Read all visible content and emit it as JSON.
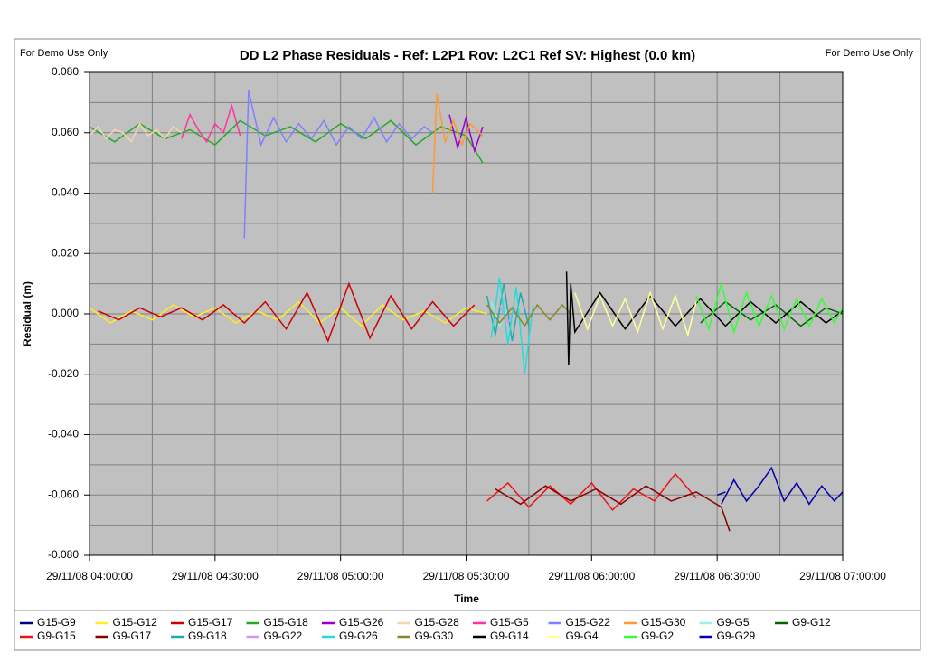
{
  "chart_data": {
    "type": "line",
    "title": "DD L2 Phase Residuals - Ref: L2P1 Rov: L2C1 Ref SV: Highest (0.0 km)",
    "notes": [
      "For Demo Use Only",
      "For Demo Use Only"
    ],
    "x_label": "Time",
    "y_label": "Residual (m)",
    "xlim": [
      "29/11/08 04:00:00",
      "29/11/08 07:00:00"
    ],
    "xticks": [
      "29/11/08 04:00:00",
      "29/11/08 04:30:00",
      "29/11/08 05:00:00",
      "29/11/08 05:30:00",
      "29/11/08 06:00:00",
      "29/11/08 06:30:00",
      "29/11/08 07:00:00"
    ],
    "minor_xticks": [
      "29/11/08 04:15:00",
      "29/11/08 04:45:00",
      "29/11/08 05:15:00",
      "29/11/08 05:45:00",
      "29/11/08 06:15:00",
      "29/11/08 06:45:00"
    ],
    "ylim": [
      -0.08,
      0.08
    ],
    "yticks": [
      {
        "value": 0.08,
        "label": "0.080"
      },
      {
        "value": 0.06,
        "label": "0.060"
      },
      {
        "value": 0.04,
        "label": "0.040"
      },
      {
        "value": 0.02,
        "label": "0.020"
      },
      {
        "value": 0,
        "label": "0.000"
      },
      {
        "value": -0.02,
        "label": "-0.020"
      },
      {
        "value": -0.04,
        "label": "-0.040"
      },
      {
        "value": -0.06,
        "label": "-0.060"
      },
      {
        "value": -0.08,
        "label": "-0.080"
      }
    ],
    "minor_yticks": [
      0.07,
      0.05,
      0.03,
      0.01,
      -0.01,
      -0.03,
      -0.05,
      -0.07
    ],
    "grid": true,
    "series": [
      {
        "name": "G15-G9",
        "color": "#000080",
        "x": [
          "29/11/08 06:30:00",
          "29/11/08 06:32:00"
        ],
        "values": [
          -0.06,
          -0.059
        ]
      },
      {
        "name": "G15-G12",
        "color": "#ffee22",
        "x": [
          "29/11/08 04:00:00",
          "29/11/08 04:05:00",
          "29/11/08 04:10:00",
          "29/11/08 04:15:00",
          "29/11/08 04:20:00",
          "29/11/08 04:25:00",
          "29/11/08 04:30:00",
          "29/11/08 04:35:00",
          "29/11/08 04:40:00",
          "29/11/08 04:45:00",
          "29/11/08 04:50:00",
          "29/11/08 04:55:00",
          "29/11/08 05:00:00",
          "29/11/08 05:05:00",
          "29/11/08 05:10:00",
          "29/11/08 05:15:00",
          "29/11/08 05:20:00",
          "29/11/08 05:25:00",
          "29/11/08 05:30:00",
          "29/11/08 05:35:00"
        ],
        "values": [
          0.002,
          -0.003,
          0.001,
          -0.002,
          0.003,
          -0.001,
          0.002,
          -0.003,
          0.001,
          -0.002,
          0.004,
          -0.003,
          0.002,
          -0.004,
          0.003,
          -0.002,
          0.001,
          -0.003,
          0.002,
          0.0
        ]
      },
      {
        "name": "G15-G17",
        "color": "#cc0000",
        "x": [
          "29/11/08 04:02:00",
          "29/11/08 04:07:00",
          "29/11/08 04:12:00",
          "29/11/08 04:17:00",
          "29/11/08 04:22:00",
          "29/11/08 04:27:00",
          "29/11/08 04:32:00",
          "29/11/08 04:37:00",
          "29/11/08 04:42:00",
          "29/11/08 04:47:00",
          "29/11/08 04:52:00",
          "29/11/08 04:57:00",
          "29/11/08 05:02:00",
          "29/11/08 05:07:00",
          "29/11/08 05:12:00",
          "29/11/08 05:17:00",
          "29/11/08 05:22:00",
          "29/11/08 05:27:00",
          "29/11/08 05:32:00"
        ],
        "values": [
          0.001,
          -0.002,
          0.002,
          -0.001,
          0.002,
          -0.002,
          0.003,
          -0.003,
          0.004,
          -0.005,
          0.007,
          -0.009,
          0.01,
          -0.008,
          0.006,
          -0.005,
          0.004,
          -0.004,
          0.003
        ]
      },
      {
        "name": "G15-G18",
        "color": "#22aa22",
        "x": [
          "29/11/08 04:00:00",
          "29/11/08 04:06:00",
          "29/11/08 04:12:00",
          "29/11/08 04:18:00",
          "29/11/08 04:24:00",
          "29/11/08 04:30:00",
          "29/11/08 04:36:00",
          "29/11/08 04:42:00",
          "29/11/08 04:48:00",
          "29/11/08 04:54:00",
          "29/11/08 05:00:00",
          "29/11/08 05:06:00",
          "29/11/08 05:12:00",
          "29/11/08 05:18:00",
          "29/11/08 05:24:00",
          "29/11/08 05:30:00",
          "29/11/08 05:34:00"
        ],
        "values": [
          0.062,
          0.057,
          0.063,
          0.058,
          0.061,
          0.056,
          0.064,
          0.059,
          0.062,
          0.057,
          0.063,
          0.058,
          0.064,
          0.056,
          0.062,
          0.059,
          0.05
        ]
      },
      {
        "name": "G15-G26",
        "color": "#9900cc",
        "x": [
          "29/11/08 05:26:00",
          "29/11/08 05:28:00",
          "29/11/08 05:30:00",
          "29/11/08 05:32:00",
          "29/11/08 05:34:00"
        ],
        "values": [
          0.066,
          0.055,
          0.065,
          0.054,
          0.062
        ]
      },
      {
        "name": "G15-G28",
        "color": "#f5d5b0",
        "x": [
          "29/11/08 04:00:00",
          "29/11/08 04:02:00",
          "29/11/08 04:04:00",
          "29/11/08 04:06:00",
          "29/11/08 04:08:00",
          "29/11/08 04:10:00",
          "29/11/08 04:12:00",
          "29/11/08 04:14:00",
          "29/11/08 04:16:00",
          "29/11/08 04:18:00",
          "29/11/08 04:20:00",
          "29/11/08 04:22:00"
        ],
        "values": [
          0.059,
          0.062,
          0.058,
          0.061,
          0.06,
          0.057,
          0.063,
          0.059,
          0.061,
          0.058,
          0.062,
          0.06
        ]
      },
      {
        "name": "G15-G5",
        "color": "#ff3399",
        "x": [
          "29/11/08 04:22:00",
          "29/11/08 04:24:00",
          "29/11/08 04:26:00",
          "29/11/08 04:28:00",
          "29/11/08 04:30:00",
          "29/11/08 04:32:00",
          "29/11/08 04:34:00",
          "29/11/08 04:36:00"
        ],
        "values": [
          0.058,
          0.066,
          0.061,
          0.057,
          0.063,
          0.06,
          0.069,
          0.059
        ]
      },
      {
        "name": "G15-G22",
        "color": "#8080ff",
        "x": [
          "29/11/08 04:37:00",
          "29/11/08 04:38:00",
          "29/11/08 04:41:00",
          "29/11/08 04:44:00",
          "29/11/08 04:47:00",
          "29/11/08 04:50:00",
          "29/11/08 04:53:00",
          "29/11/08 04:56:00",
          "29/11/08 04:59:00",
          "29/11/08 05:02:00",
          "29/11/08 05:05:00",
          "29/11/08 05:08:00",
          "29/11/08 05:11:00",
          "29/11/08 05:14:00",
          "29/11/08 05:17:00",
          "29/11/08 05:20:00",
          "29/11/08 05:22:00"
        ],
        "values": [
          0.025,
          0.074,
          0.056,
          0.065,
          0.057,
          0.063,
          0.058,
          0.064,
          0.056,
          0.062,
          0.058,
          0.065,
          0.057,
          0.063,
          0.058,
          0.062,
          0.06
        ]
      },
      {
        "name": "G15-G30",
        "color": "#ff9933",
        "x": [
          "29/11/08 05:22:00",
          "29/11/08 05:23:00",
          "29/11/08 05:25:00",
          "29/11/08 05:27:00",
          "29/11/08 05:29:00",
          "29/11/08 05:31:00",
          "29/11/08 05:34:00"
        ],
        "values": [
          0.04,
          0.073,
          0.057,
          0.064,
          0.056,
          0.063,
          0.059
        ]
      },
      {
        "name": "G9-G5",
        "color": "#99eeee",
        "x": [
          "29/11/08 05:36:00",
          "29/11/08 05:38:00",
          "29/11/08 05:40:00"
        ],
        "values": [
          0.004,
          -0.004,
          0.002
        ]
      },
      {
        "name": "G9-G12",
        "color": "#006600",
        "x": [
          "29/11/08 06:26:00",
          "29/11/08 06:32:00",
          "29/11/08 06:38:00",
          "29/11/08 06:44:00",
          "29/11/08 06:50:00",
          "29/11/08 06:56:00",
          "29/11/08 07:00:00"
        ],
        "values": [
          -0.003,
          0.004,
          -0.002,
          0.003,
          -0.004,
          0.002,
          0.0
        ]
      },
      {
        "name": "G9-G15",
        "color": "#ee1111",
        "x": [
          "29/11/08 05:35:00",
          "29/11/08 05:40:00",
          "29/11/08 05:45:00",
          "29/11/08 05:50:00",
          "29/11/08 05:55:00",
          "29/11/08 06:00:00",
          "29/11/08 06:05:00",
          "29/11/08 06:10:00",
          "29/11/08 06:15:00",
          "29/11/08 06:20:00",
          "29/11/08 06:25:00"
        ],
        "values": [
          -0.062,
          -0.056,
          -0.064,
          -0.057,
          -0.063,
          -0.056,
          -0.065,
          -0.058,
          -0.062,
          -0.053,
          -0.061
        ]
      },
      {
        "name": "G9-G17",
        "color": "#880000",
        "x": [
          "29/11/08 05:37:00",
          "29/11/08 05:43:00",
          "29/11/08 05:49:00",
          "29/11/08 05:55:00",
          "29/11/08 06:01:00",
          "29/11/08 06:07:00",
          "29/11/08 06:13:00",
          "29/11/08 06:19:00",
          "29/11/08 06:25:00",
          "29/11/08 06:31:00",
          "29/11/08 06:33:00"
        ],
        "values": [
          -0.058,
          -0.063,
          -0.057,
          -0.062,
          -0.058,
          -0.063,
          -0.057,
          -0.062,
          -0.059,
          -0.064,
          -0.072
        ]
      },
      {
        "name": "G9-G18",
        "color": "#22aaaa",
        "x": [
          "29/11/08 05:35:00",
          "29/11/08 05:37:00",
          "29/11/08 05:39:00",
          "29/11/08 05:41:00",
          "29/11/08 05:43:00",
          "29/11/08 05:45:00"
        ],
        "values": [
          0.006,
          -0.007,
          0.01,
          -0.009,
          0.007,
          -0.004
        ]
      },
      {
        "name": "G9-G22",
        "color": "#cc99ee",
        "x": [
          "29/11/08 05:38:00",
          "29/11/08 05:40:00",
          "29/11/08 05:42:00"
        ],
        "values": [
          0.003,
          -0.003,
          0.002
        ]
      },
      {
        "name": "G9-G26",
        "color": "#22dddd",
        "x": [
          "29/11/08 05:36:00",
          "29/11/08 05:38:00",
          "29/11/08 05:40:00",
          "29/11/08 05:42:00",
          "29/11/08 05:44:00",
          "29/11/08 05:46:00"
        ],
        "values": [
          -0.008,
          0.012,
          -0.01,
          0.009,
          -0.02,
          0.003
        ]
      },
      {
        "name": "G9-G30",
        "color": "#888822",
        "x": [
          "29/11/08 05:35:00",
          "29/11/08 05:38:00",
          "29/11/08 05:41:00",
          "29/11/08 05:44:00",
          "29/11/08 05:47:00",
          "29/11/08 05:50:00",
          "29/11/08 05:53:00",
          "29/11/08 05:55:00"
        ],
        "values": [
          0.003,
          -0.003,
          0.002,
          -0.004,
          0.003,
          -0.002,
          0.003,
          0.0
        ]
      },
      {
        "name": "G9-G14",
        "color": "#000000",
        "x": [
          "29/11/08 05:54:00",
          "29/11/08 05:54:30",
          "29/11/08 05:55:00",
          "29/11/08 05:56:00",
          "29/11/08 06:02:00",
          "29/11/08 06:08:00",
          "29/11/08 06:14:00",
          "29/11/08 06:20:00",
          "29/11/08 06:26:00",
          "29/11/08 06:32:00",
          "29/11/08 06:38:00",
          "29/11/08 06:44:00",
          "29/11/08 06:50:00",
          "29/11/08 06:56:00",
          "29/11/08 07:00:00"
        ],
        "values": [
          0.014,
          -0.017,
          0.01,
          -0.006,
          0.007,
          -0.005,
          0.006,
          -0.004,
          0.005,
          -0.004,
          0.004,
          -0.003,
          0.004,
          -0.003,
          0.001
        ]
      },
      {
        "name": "G9-G4",
        "color": "#ffff99",
        "x": [
          "29/11/08 05:56:00",
          "29/11/08 05:59:00",
          "29/11/08 06:02:00",
          "29/11/08 06:05:00",
          "29/11/08 06:08:00",
          "29/11/08 06:11:00",
          "29/11/08 06:14:00",
          "29/11/08 06:17:00",
          "29/11/08 06:20:00",
          "29/11/08 06:23:00",
          "29/11/08 06:25:00"
        ],
        "values": [
          0.007,
          -0.005,
          0.006,
          -0.004,
          0.005,
          -0.006,
          0.007,
          -0.005,
          0.006,
          -0.007,
          0.004
        ]
      },
      {
        "name": "G9-G2",
        "color": "#33ff33",
        "x": [
          "29/11/08 06:25:00",
          "29/11/08 06:28:00",
          "29/11/08 06:31:00",
          "29/11/08 06:34:00",
          "29/11/08 06:37:00",
          "29/11/08 06:40:00",
          "29/11/08 06:43:00",
          "29/11/08 06:46:00",
          "29/11/08 06:49:00",
          "29/11/08 06:52:00",
          "29/11/08 06:55:00",
          "29/11/08 06:58:00",
          "29/11/08 07:00:00"
        ],
        "values": [
          0.006,
          -0.005,
          0.01,
          -0.006,
          0.007,
          -0.004,
          0.006,
          -0.005,
          0.005,
          -0.004,
          0.005,
          -0.003,
          0.002
        ]
      },
      {
        "name": "G9-G29",
        "color": "#0000aa",
        "x": [
          "29/11/08 06:31:00",
          "29/11/08 06:34:00",
          "29/11/08 06:37:00",
          "29/11/08 06:40:00",
          "29/11/08 06:43:00",
          "29/11/08 06:46:00",
          "29/11/08 06:49:00",
          "29/11/08 06:52:00",
          "29/11/08 06:55:00",
          "29/11/08 06:58:00",
          "29/11/08 07:00:00"
        ],
        "values": [
          -0.063,
          -0.055,
          -0.062,
          -0.057,
          -0.051,
          -0.062,
          -0.056,
          -0.063,
          -0.057,
          -0.062,
          -0.059
        ]
      }
    ]
  }
}
